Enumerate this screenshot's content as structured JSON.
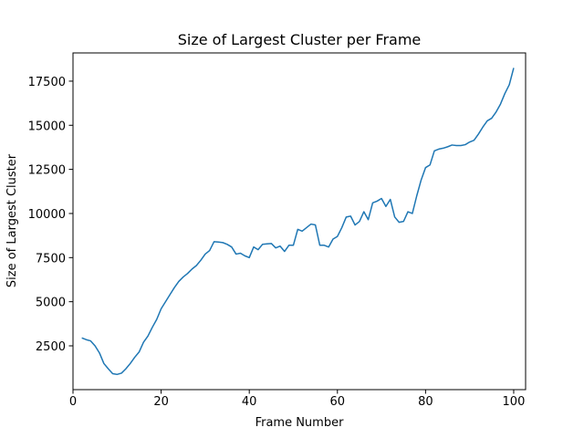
{
  "chart_data": {
    "type": "line",
    "title": "Size of Largest Cluster per Frame",
    "xlabel": "Frame Number",
    "ylabel": "Size of Largest Cluster",
    "x": [
      2,
      3,
      4,
      5,
      6,
      7,
      8,
      9,
      10,
      11,
      12,
      13,
      14,
      15,
      16,
      17,
      18,
      19,
      20,
      21,
      22,
      23,
      24,
      25,
      26,
      27,
      28,
      29,
      30,
      31,
      32,
      33,
      34,
      35,
      36,
      37,
      38,
      39,
      40,
      41,
      42,
      43,
      44,
      45,
      46,
      47,
      48,
      49,
      50,
      51,
      52,
      53,
      54,
      55,
      56,
      57,
      58,
      59,
      60,
      61,
      62,
      63,
      64,
      65,
      66,
      67,
      68,
      69,
      70,
      71,
      72,
      73,
      74,
      75,
      76,
      77,
      78,
      79,
      80,
      81,
      82,
      83,
      84,
      85,
      86,
      87,
      88,
      89,
      90,
      91,
      92,
      93,
      94,
      95,
      96,
      97,
      98,
      99,
      100
    ],
    "series": [
      {
        "color": "#1f77b4",
        "values": [
          2950,
          2850,
          2780,
          2500,
          2100,
          1500,
          1200,
          920,
          880,
          950,
          1200,
          1500,
          1850,
          2150,
          2700,
          3050,
          3550,
          4000,
          4600,
          5000,
          5400,
          5800,
          6150,
          6400,
          6600,
          6850,
          7050,
          7350,
          7700,
          7900,
          8400,
          8380,
          8350,
          8250,
          8100,
          7700,
          7750,
          7600,
          7500,
          8100,
          7950,
          8250,
          8280,
          8300,
          8050,
          8150,
          7850,
          8200,
          8200,
          9100,
          9000,
          9200,
          9400,
          9350,
          8200,
          8200,
          8100,
          8550,
          8700,
          9200,
          9800,
          9850,
          9350,
          9550,
          10100,
          9650,
          10600,
          10700,
          10850,
          10400,
          10800,
          9800,
          9500,
          9550,
          10100,
          10000,
          11000,
          11900,
          12600,
          12750,
          13550,
          13650,
          13700,
          13780,
          13880,
          13850,
          13850,
          13900,
          14050,
          14150,
          14500,
          14900,
          15250,
          15400,
          15750,
          16200,
          16800,
          17300,
          18250
        ]
      }
    ],
    "xlim": [
      0,
      102.7
    ],
    "xticks": [
      0,
      20,
      40,
      60,
      80,
      100
    ],
    "ylim": [
      17,
      19100
    ],
    "yticks": [
      2500,
      5000,
      7500,
      10000,
      12500,
      15000,
      17500
    ]
  }
}
